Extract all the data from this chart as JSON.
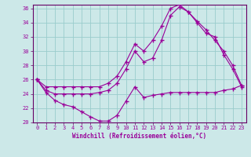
{
  "xlabel": "Windchill (Refroidissement éolien,°C)",
  "ylabel": "",
  "xlim": [
    -0.5,
    23.5
  ],
  "ylim": [
    20,
    36.5
  ],
  "xticks": [
    0,
    1,
    2,
    3,
    4,
    5,
    6,
    7,
    8,
    9,
    10,
    11,
    12,
    13,
    14,
    15,
    16,
    17,
    18,
    19,
    20,
    21,
    22,
    23
  ],
  "yticks": [
    20,
    22,
    24,
    26,
    28,
    30,
    32,
    34,
    36
  ],
  "bg_color": "#cce8e8",
  "grid_color": "#99cccc",
  "line_color": "#990099",
  "curve1_x": [
    0,
    1,
    2,
    3,
    4,
    5,
    6,
    7,
    8,
    9,
    10,
    11,
    12,
    13,
    14,
    15,
    16,
    17,
    18,
    19,
    20,
    21,
    22,
    23
  ],
  "curve1_y": [
    26.0,
    24.2,
    23.1,
    22.5,
    22.2,
    21.5,
    20.8,
    20.2,
    20.2,
    21.0,
    23.0,
    25.0,
    23.5,
    23.8,
    24.0,
    24.2,
    24.2,
    24.2,
    24.2,
    24.2,
    24.2,
    24.5,
    24.7,
    25.2
  ],
  "curve2_x": [
    0,
    1,
    2,
    3,
    4,
    5,
    6,
    7,
    8,
    9,
    10,
    11,
    12,
    13,
    14,
    15,
    16,
    17,
    18,
    19,
    20,
    21,
    22,
    23
  ],
  "curve2_y": [
    26.0,
    24.5,
    24.0,
    24.0,
    24.0,
    24.0,
    24.0,
    24.2,
    24.5,
    25.5,
    27.5,
    30.0,
    28.5,
    29.0,
    31.5,
    35.0,
    36.2,
    35.5,
    34.0,
    32.5,
    32.0,
    29.5,
    27.5,
    25.0
  ],
  "curve3_x": [
    0,
    1,
    2,
    3,
    4,
    5,
    6,
    7,
    8,
    9,
    10,
    11,
    12,
    13,
    14,
    15,
    16,
    17,
    18,
    19,
    20,
    21,
    22,
    23
  ],
  "curve3_y": [
    26.0,
    25.0,
    25.0,
    25.0,
    25.0,
    25.0,
    25.0,
    25.0,
    25.5,
    26.5,
    28.5,
    31.0,
    30.0,
    31.5,
    33.5,
    36.0,
    36.5,
    35.5,
    34.2,
    33.0,
    31.5,
    30.0,
    28.0,
    25.2
  ]
}
